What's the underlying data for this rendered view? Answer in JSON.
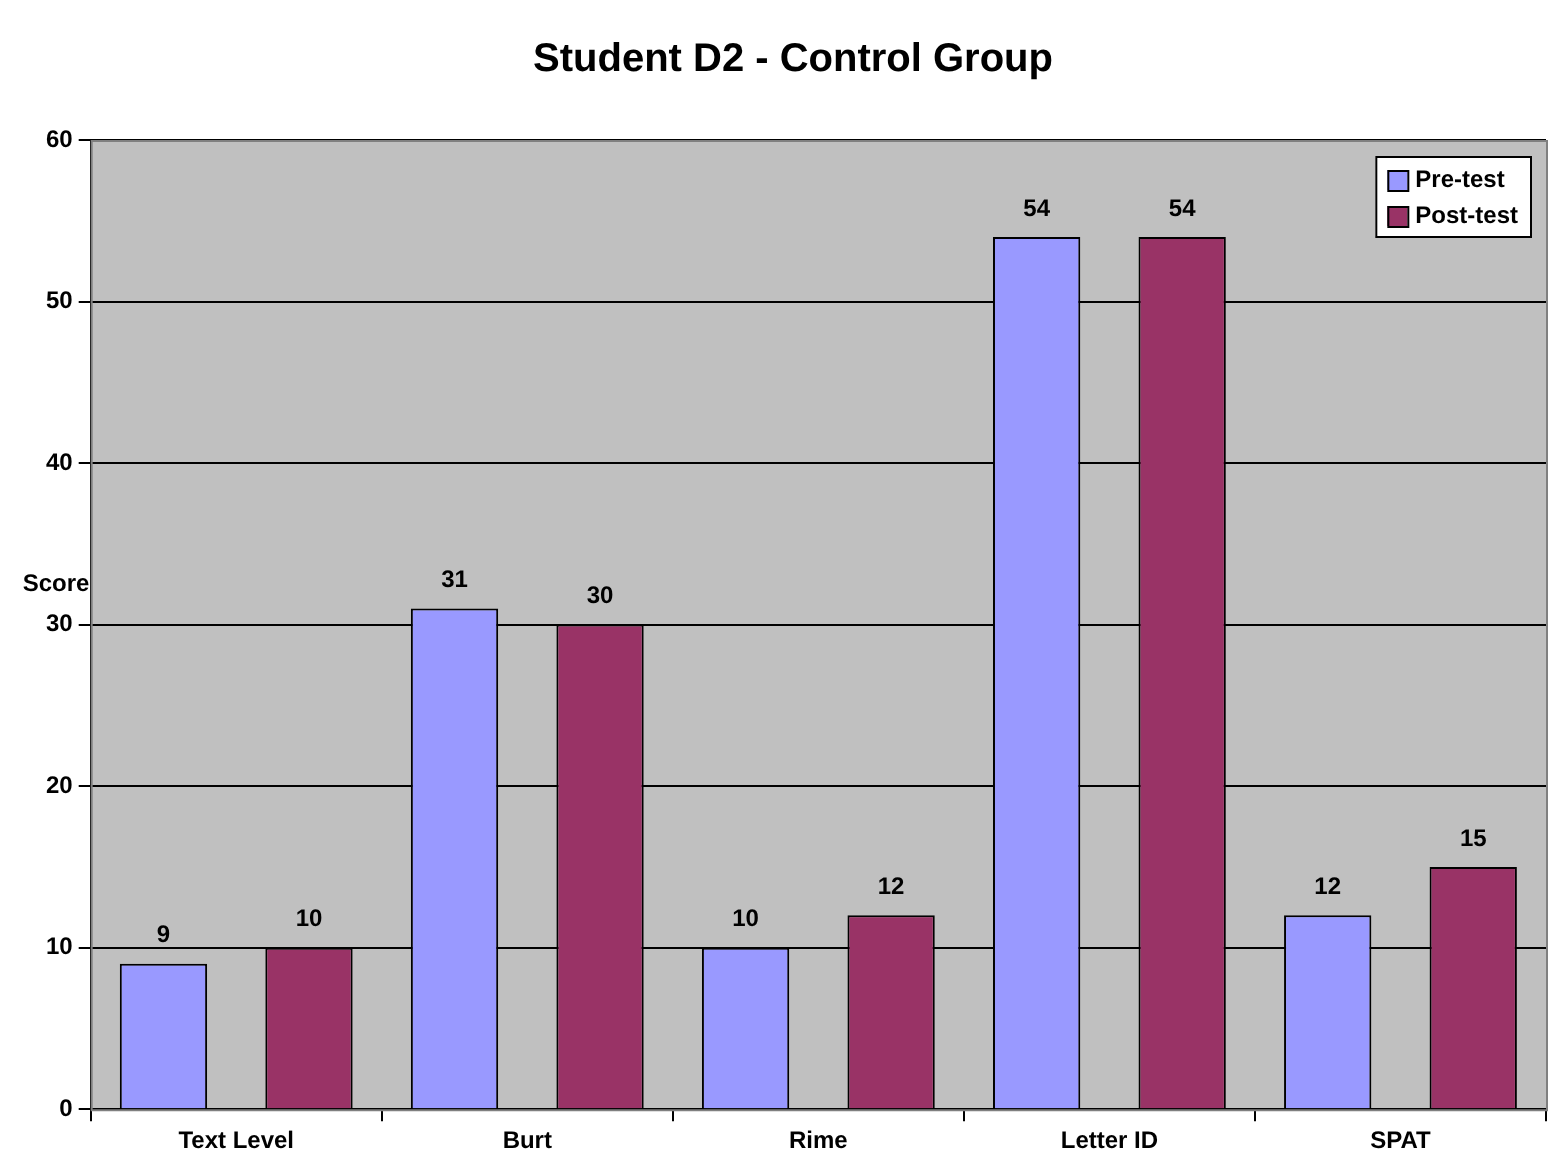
{
  "chart_data": {
    "type": "bar",
    "title": "Student D2 - Control Group",
    "ylabel": "Score",
    "categories": [
      "Text Level",
      "Burt",
      "Rime",
      "Letter ID",
      "SPAT"
    ],
    "series": [
      {
        "name": "Pre-test",
        "color": "#9999ff",
        "values": [
          9,
          31,
          10,
          54,
          12
        ]
      },
      {
        "name": "Post-test",
        "color": "#993366",
        "values": [
          10,
          30,
          12,
          54,
          15
        ]
      }
    ],
    "ylim": [
      0,
      60
    ],
    "yticks": [
      0,
      10,
      20,
      30,
      40,
      50,
      60
    ],
    "grid": "y",
    "legend": "top right",
    "data_labels": true
  }
}
